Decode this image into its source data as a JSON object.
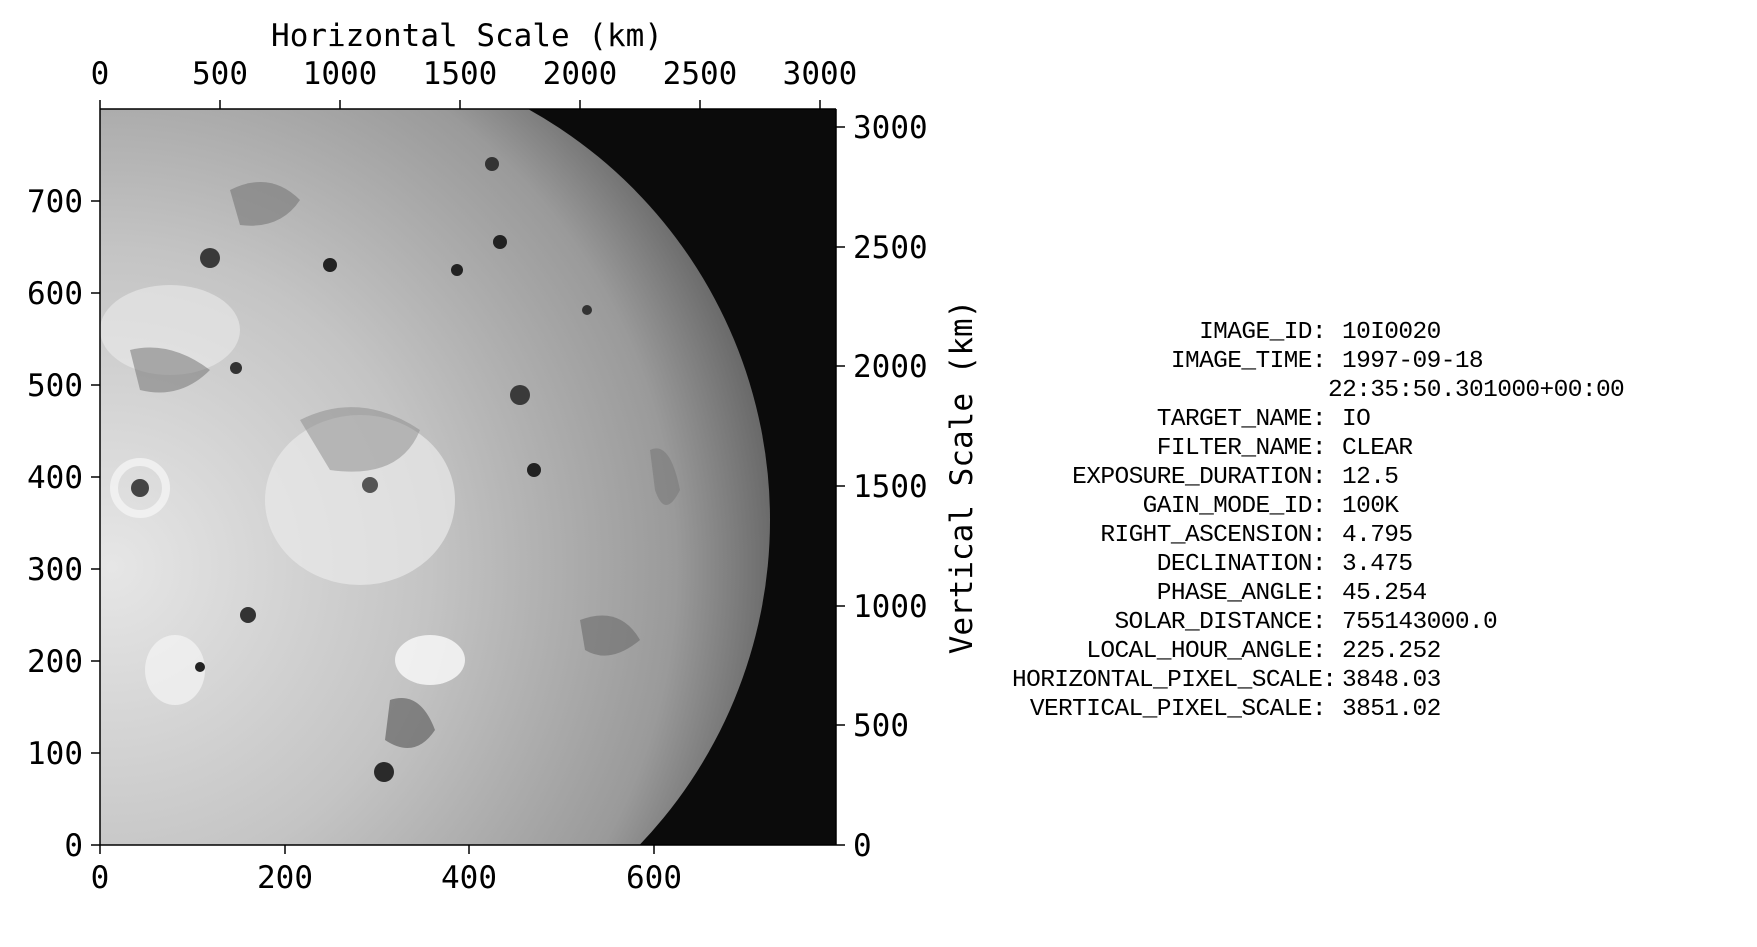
{
  "figure": {
    "top_axis_title": "Horizontal Scale (km)",
    "right_axis_title": "Vertical Scale (km)",
    "top_ticks": [
      "0",
      "500",
      "1000",
      "1500",
      "2000",
      "2500",
      "3000"
    ],
    "right_ticks": [
      "0",
      "500",
      "1000",
      "1500",
      "2000",
      "2500",
      "3000"
    ],
    "bottom_ticks": [
      "0",
      "200",
      "400",
      "600"
    ],
    "left_ticks": [
      "0",
      "100",
      "200",
      "300",
      "400",
      "500",
      "600",
      "700"
    ],
    "image_subject": "Io grayscale disk"
  },
  "metadata": {
    "rows": [
      {
        "key": "IMAGE_ID:",
        "value": "10I0020"
      },
      {
        "key": "IMAGE_TIME:",
        "value": "1997-09-18"
      },
      {
        "key": "",
        "value": "22:35:50.301000+00:00"
      },
      {
        "key": "TARGET_NAME:",
        "value": "IO"
      },
      {
        "key": "FILTER_NAME:",
        "value": "CLEAR"
      },
      {
        "key": "EXPOSURE_DURATION:",
        "value": "12.5"
      },
      {
        "key": "GAIN_MODE_ID:",
        "value": "100K"
      },
      {
        "key": "RIGHT_ASCENSION:",
        "value": "4.795"
      },
      {
        "key": "DECLINATION:",
        "value": "3.475"
      },
      {
        "key": "PHASE_ANGLE:",
        "value": "45.254"
      },
      {
        "key": "SOLAR_DISTANCE:",
        "value": "755143000.0"
      },
      {
        "key": "LOCAL_HOUR_ANGLE:",
        "value": "225.252"
      },
      {
        "key": "HORIZONTAL_PIXEL_SCALE:",
        "value": "3848.03"
      },
      {
        "key": "VERTICAL_PIXEL_SCALE:",
        "value": "3851.02"
      }
    ]
  }
}
